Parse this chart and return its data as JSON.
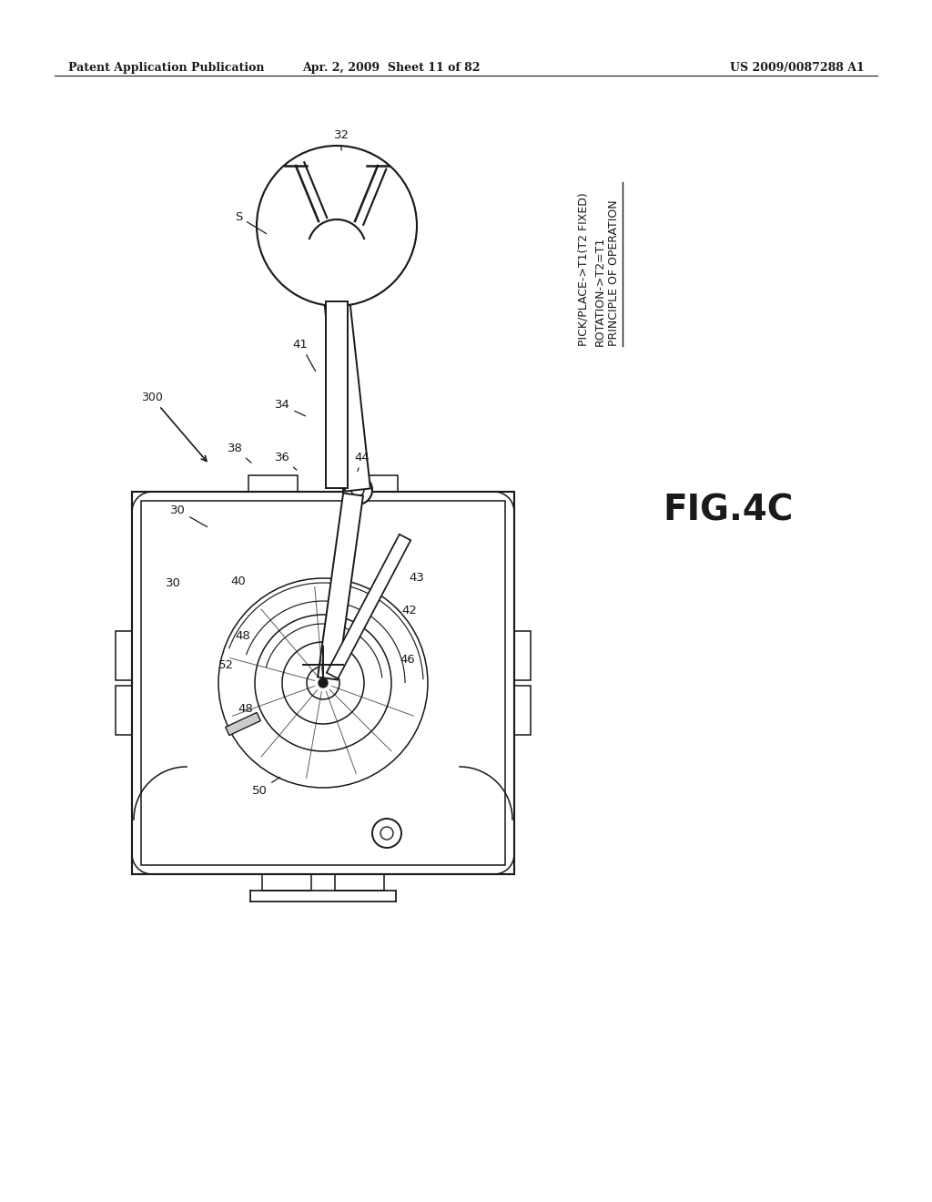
{
  "bg_color": "#ffffff",
  "line_color": "#1a1a1a",
  "header_left": "Patent Application Publication",
  "header_mid": "Apr. 2, 2009  Sheet 11 of 82",
  "header_right": "US 2009/0087288 A1",
  "fig_label": "FIG.4C",
  "principle_line1": "PRINCIPLE OF OPERATION",
  "principle_line2": "ROTATION->T2=T1",
  "principle_line3": "PICK/PLACE->T1(T2 FIXED)"
}
